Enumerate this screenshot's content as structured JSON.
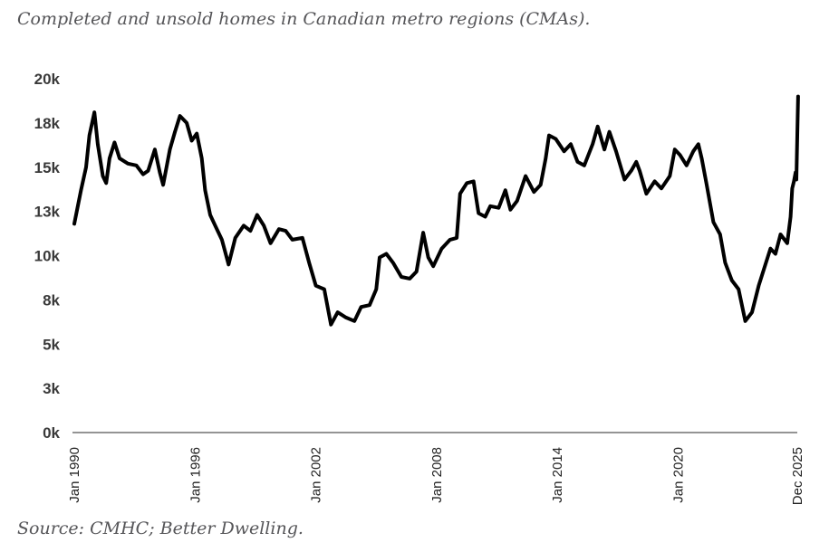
{
  "chart_data": {
    "type": "line",
    "title": "Completed and unsold homes in Canadian metro regions (CMAs).",
    "source": "Source: CMHC; Better Dwelling.",
    "xlabel": "",
    "ylabel": "",
    "x_range": [
      "1990-01",
      "2025-12"
    ],
    "ylim": [
      0,
      20000
    ],
    "grid": false,
    "legend": "none",
    "y_ticks": [
      {
        "value": 0,
        "label": "0k"
      },
      {
        "value": 2500,
        "label": "3k"
      },
      {
        "value": 5000,
        "label": "5k"
      },
      {
        "value": 7500,
        "label": "8k"
      },
      {
        "value": 10000,
        "label": "10k"
      },
      {
        "value": 12500,
        "label": "13k"
      },
      {
        "value": 15000,
        "label": "15k"
      },
      {
        "value": 17500,
        "label": "18k"
      },
      {
        "value": 20000,
        "label": "20k"
      }
    ],
    "x_ticks": [
      {
        "date": "1990-01",
        "label": "Jan 1990"
      },
      {
        "date": "1996-01",
        "label": "Jan 1996"
      },
      {
        "date": "2002-01",
        "label": "Jan 2002"
      },
      {
        "date": "2008-01",
        "label": "Jan 2008"
      },
      {
        "date": "2014-01",
        "label": "Jan 2014"
      },
      {
        "date": "2020-01",
        "label": "Jan 2020"
      },
      {
        "date": "2025-12",
        "label": "Dec 2025"
      }
    ],
    "series": [
      {
        "name": "Completed and unsold homes",
        "color": "#000000",
        "points": [
          [
            "1990-01",
            11800
          ],
          [
            "1990-05",
            13700
          ],
          [
            "1990-08",
            15000
          ],
          [
            "1990-10",
            16800
          ],
          [
            "1991-01",
            18100
          ],
          [
            "1991-03",
            16300
          ],
          [
            "1991-06",
            14500
          ],
          [
            "1991-08",
            14100
          ],
          [
            "1991-10",
            15500
          ],
          [
            "1992-01",
            16400
          ],
          [
            "1992-04",
            15500
          ],
          [
            "1992-09",
            15200
          ],
          [
            "1993-02",
            15100
          ],
          [
            "1993-06",
            14600
          ],
          [
            "1993-09",
            14800
          ],
          [
            "1994-01",
            16000
          ],
          [
            "1994-04",
            14700
          ],
          [
            "1994-06",
            14000
          ],
          [
            "1994-10",
            16000
          ],
          [
            "1995-01",
            17000
          ],
          [
            "1995-04",
            17900
          ],
          [
            "1995-08",
            17500
          ],
          [
            "1995-11",
            16500
          ],
          [
            "1996-02",
            16900
          ],
          [
            "1996-05",
            15500
          ],
          [
            "1996-07",
            13700
          ],
          [
            "1996-10",
            12300
          ],
          [
            "1997-01",
            11700
          ],
          [
            "1997-05",
            10900
          ],
          [
            "1997-09",
            9500
          ],
          [
            "1998-01",
            11000
          ],
          [
            "1998-06",
            11700
          ],
          [
            "1998-10",
            11400
          ],
          [
            "1999-02",
            12300
          ],
          [
            "1999-06",
            11700
          ],
          [
            "1999-10",
            10700
          ],
          [
            "2000-03",
            11500
          ],
          [
            "2000-07",
            11400
          ],
          [
            "2000-11",
            10900
          ],
          [
            "2001-05",
            11000
          ],
          [
            "2001-09",
            9600
          ],
          [
            "2002-01",
            8300
          ],
          [
            "2002-06",
            8100
          ],
          [
            "2002-10",
            6100
          ],
          [
            "2003-02",
            6800
          ],
          [
            "2003-07",
            6500
          ],
          [
            "2003-12",
            6300
          ],
          [
            "2004-04",
            7100
          ],
          [
            "2004-09",
            7200
          ],
          [
            "2005-01",
            8100
          ],
          [
            "2005-03",
            9900
          ],
          [
            "2005-07",
            10100
          ],
          [
            "2005-11",
            9600
          ],
          [
            "2006-04",
            8800
          ],
          [
            "2006-09",
            8700
          ],
          [
            "2007-01",
            9100
          ],
          [
            "2007-05",
            11300
          ],
          [
            "2007-08",
            9900
          ],
          [
            "2007-11",
            9400
          ],
          [
            "2008-04",
            10400
          ],
          [
            "2008-09",
            10900
          ],
          [
            "2009-01",
            11000
          ],
          [
            "2009-03",
            13500
          ],
          [
            "2009-07",
            14100
          ],
          [
            "2009-11",
            14200
          ],
          [
            "2010-02",
            12400
          ],
          [
            "2010-06",
            12200
          ],
          [
            "2010-09",
            12800
          ],
          [
            "2011-02",
            12700
          ],
          [
            "2011-06",
            13700
          ],
          [
            "2011-09",
            12600
          ],
          [
            "2012-01",
            13100
          ],
          [
            "2012-06",
            14500
          ],
          [
            "2012-11",
            13600
          ],
          [
            "2013-03",
            14000
          ],
          [
            "2013-06",
            15500
          ],
          [
            "2013-08",
            16800
          ],
          [
            "2013-12",
            16600
          ],
          [
            "2014-05",
            15900
          ],
          [
            "2014-09",
            16300
          ],
          [
            "2015-01",
            15300
          ],
          [
            "2015-05",
            15100
          ],
          [
            "2015-10",
            16300
          ],
          [
            "2016-01",
            17300
          ],
          [
            "2016-05",
            16000
          ],
          [
            "2016-08",
            17000
          ],
          [
            "2016-12",
            15900
          ],
          [
            "2017-05",
            14300
          ],
          [
            "2017-09",
            14800
          ],
          [
            "2017-12",
            15300
          ],
          [
            "2018-02",
            14800
          ],
          [
            "2018-06",
            13500
          ],
          [
            "2018-11",
            14200
          ],
          [
            "2019-03",
            13800
          ],
          [
            "2019-08",
            14500
          ],
          [
            "2019-11",
            16000
          ],
          [
            "2020-02",
            15700
          ],
          [
            "2020-06",
            15100
          ],
          [
            "2020-10",
            15900
          ],
          [
            "2021-01",
            16300
          ],
          [
            "2021-03",
            15500
          ],
          [
            "2021-06",
            14000
          ],
          [
            "2021-10",
            11900
          ],
          [
            "2022-02",
            11200
          ],
          [
            "2022-05",
            9600
          ],
          [
            "2022-09",
            8600
          ],
          [
            "2023-01",
            8100
          ],
          [
            "2023-05",
            6300
          ],
          [
            "2023-09",
            6800
          ],
          [
            "2024-01",
            8300
          ],
          [
            "2024-05",
            9500
          ],
          [
            "2024-08",
            10400
          ],
          [
            "2024-11",
            10100
          ],
          [
            "2025-02",
            11200
          ],
          [
            "2025-06",
            10700
          ],
          [
            "2025-08",
            12200
          ],
          [
            "2025-09",
            13800
          ],
          [
            "2025-10",
            14200
          ],
          [
            "2025-11",
            14700
          ],
          [
            "2025-11",
            14300
          ],
          [
            "2025-12",
            16800
          ],
          [
            "2025-12",
            19000
          ]
        ]
      }
    ]
  }
}
